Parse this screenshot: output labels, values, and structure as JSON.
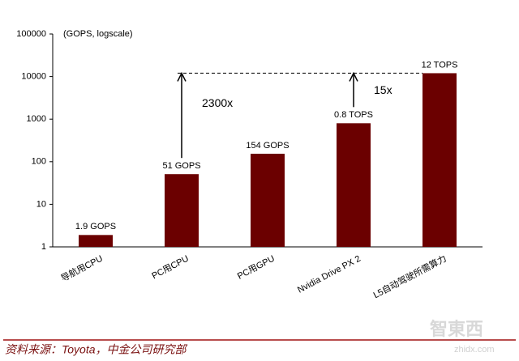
{
  "chart_data": {
    "type": "bar",
    "y_label": "(GOPS, logscale)",
    "categories": [
      "导航用CPU",
      "PC用CPU",
      "PC用GPU",
      "Nvidia Drive PX 2",
      "L5自动驾驶所需算力"
    ],
    "values": [
      1.9,
      51,
      154,
      800,
      12000
    ],
    "value_labels": [
      "1.9 GOPS",
      "51 GOPS",
      "154 GOPS",
      "0.8 TOPS",
      "12 TOPS"
    ],
    "color": "#6b0000",
    "log_scale": true,
    "ylim": [
      1,
      100000
    ],
    "yticks": [
      1,
      10,
      100,
      1000,
      10000,
      100000
    ],
    "annotations": [
      "2300x",
      "15x"
    ]
  },
  "source": "资料来源：Toyota，中金公司研究部",
  "watermark": [
    "智東西",
    "zhidx.com"
  ]
}
